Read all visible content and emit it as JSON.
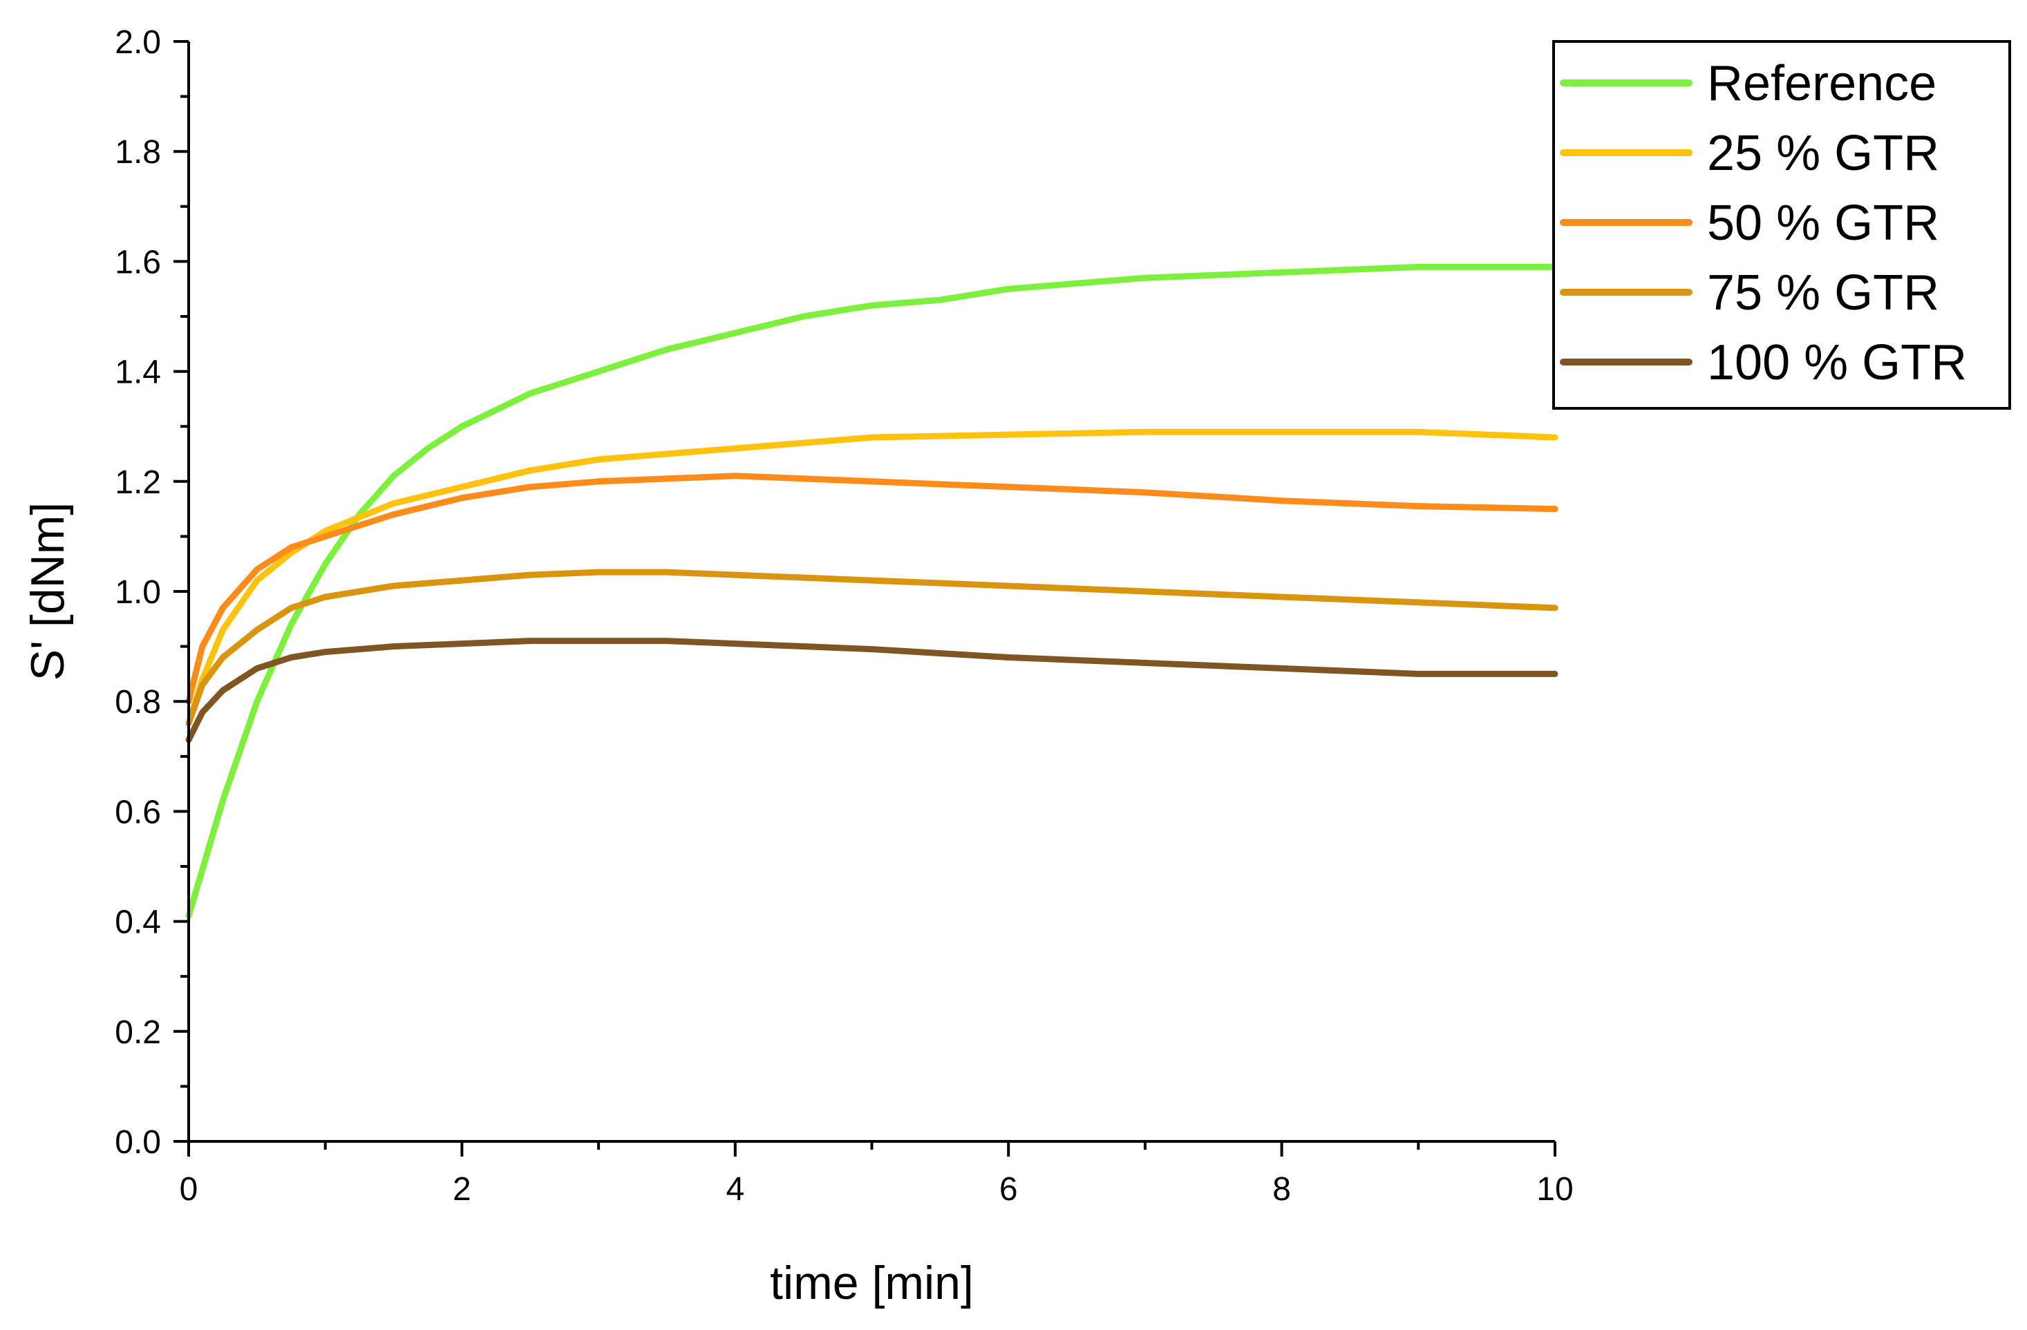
{
  "chart_data": {
    "type": "line",
    "title": "",
    "xlabel": "time [min]",
    "ylabel": "S' [dNm]",
    "xlim": [
      0,
      10
    ],
    "ylim": [
      0,
      2.0
    ],
    "xticks": [
      "0",
      "2",
      "4",
      "6",
      "8",
      "10"
    ],
    "yticks": [
      "0.0",
      "0.2",
      "0.4",
      "0.6",
      "0.8",
      "1.0",
      "1.2",
      "1.4",
      "1.6",
      "1.8",
      "2.0"
    ],
    "x_minor_step": 1,
    "y_minor_step": 0.1,
    "grid": false,
    "legend_position": "top-right",
    "series": [
      {
        "name": "Reference",
        "color": "#7cf03c",
        "x": [
          0,
          0.25,
          0.5,
          0.75,
          1.0,
          1.25,
          1.5,
          1.75,
          2.0,
          2.5,
          3.0,
          3.5,
          4.0,
          4.5,
          5.0,
          5.5,
          6.0,
          6.5,
          7.0,
          7.5,
          8.0,
          8.5,
          9.0,
          9.5,
          10.0
        ],
        "y": [
          0.41,
          0.62,
          0.8,
          0.94,
          1.05,
          1.14,
          1.21,
          1.26,
          1.3,
          1.36,
          1.4,
          1.44,
          1.47,
          1.5,
          1.52,
          1.53,
          1.55,
          1.56,
          1.57,
          1.575,
          1.58,
          1.585,
          1.59,
          1.59,
          1.59
        ]
      },
      {
        "name": "25 % GTR",
        "color": "#ffc20e",
        "x": [
          0,
          0.1,
          0.25,
          0.5,
          0.75,
          1.0,
          1.5,
          2.0,
          2.5,
          3.0,
          3.5,
          4.0,
          5.0,
          6.0,
          7.0,
          8.0,
          9.0,
          9.5,
          10.0
        ],
        "y": [
          0.76,
          0.84,
          0.93,
          1.02,
          1.07,
          1.11,
          1.16,
          1.19,
          1.22,
          1.24,
          1.25,
          1.26,
          1.28,
          1.285,
          1.29,
          1.29,
          1.29,
          1.285,
          1.28
        ]
      },
      {
        "name": "50 % GTR",
        "color": "#ff8c1a",
        "x": [
          0,
          0.1,
          0.25,
          0.5,
          0.75,
          1.0,
          1.5,
          2.0,
          2.5,
          3.0,
          3.5,
          4.0,
          4.5,
          5.0,
          6.0,
          7.0,
          8.0,
          9.0,
          10.0
        ],
        "y": [
          0.8,
          0.9,
          0.97,
          1.04,
          1.08,
          1.1,
          1.14,
          1.17,
          1.19,
          1.2,
          1.205,
          1.21,
          1.205,
          1.2,
          1.19,
          1.18,
          1.165,
          1.155,
          1.15
        ]
      },
      {
        "name": "75 % GTR",
        "color": "#d9950f",
        "x": [
          0,
          0.1,
          0.25,
          0.5,
          0.75,
          1.0,
          1.5,
          2.0,
          2.5,
          3.0,
          3.5,
          4.0,
          5.0,
          6.0,
          7.0,
          8.0,
          9.0,
          10.0
        ],
        "y": [
          0.76,
          0.83,
          0.88,
          0.93,
          0.97,
          0.99,
          1.01,
          1.02,
          1.03,
          1.035,
          1.035,
          1.03,
          1.02,
          1.01,
          1.0,
          0.99,
          0.98,
          0.97
        ]
      },
      {
        "name": "100 % GTR",
        "color": "#7f5523",
        "x": [
          0,
          0.1,
          0.25,
          0.5,
          0.75,
          1.0,
          1.5,
          2.0,
          2.5,
          3.0,
          3.5,
          4.0,
          5.0,
          6.0,
          7.0,
          8.0,
          9.0,
          10.0
        ],
        "y": [
          0.73,
          0.78,
          0.82,
          0.86,
          0.88,
          0.89,
          0.9,
          0.905,
          0.91,
          0.91,
          0.91,
          0.905,
          0.895,
          0.88,
          0.87,
          0.86,
          0.85,
          0.85
        ]
      }
    ]
  }
}
